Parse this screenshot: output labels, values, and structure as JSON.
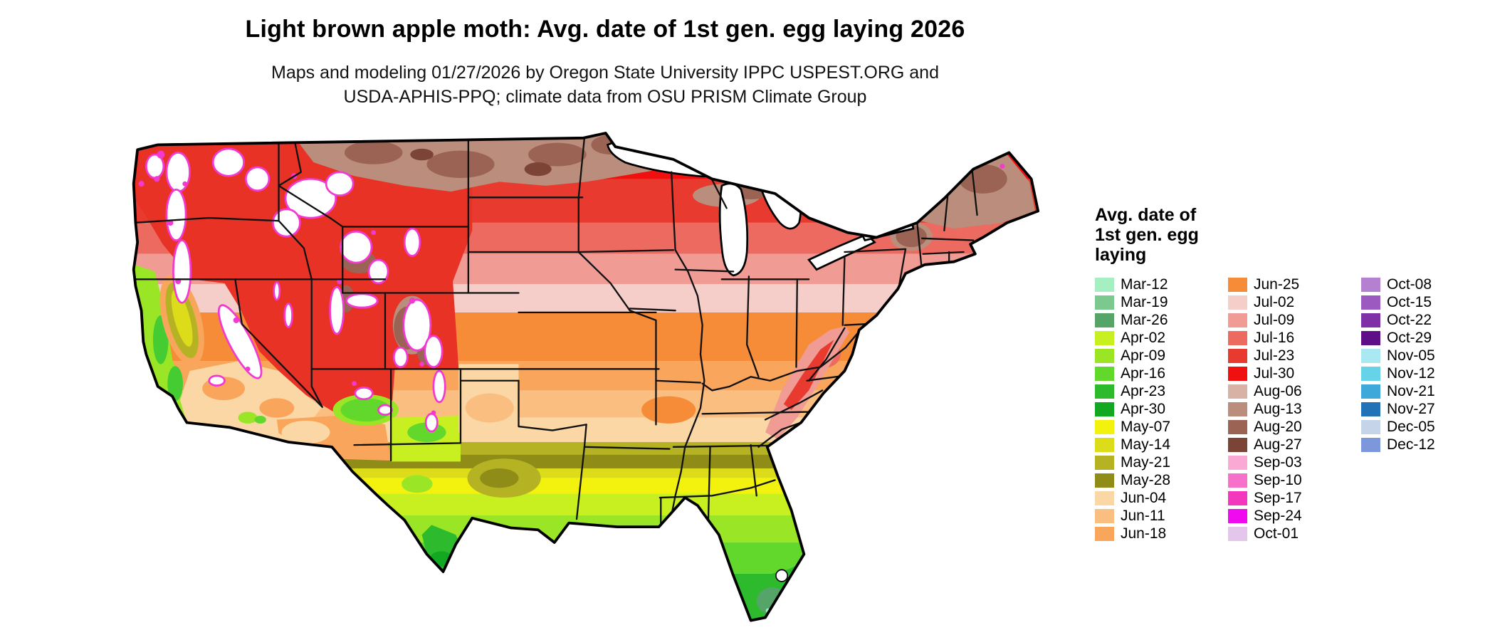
{
  "title": "Light brown apple moth: Avg. date of 1st gen. egg laying 2026",
  "subtitle": {
    "line1": "Maps and modeling 01/27/2026 by Oregon State University IPPC USPEST.ORG and",
    "line2": "USDA-APHIS-PPQ; climate data from OSU PRISM Climate Group"
  },
  "legend": {
    "title_lines": [
      "Avg. date of",
      "1st gen. egg",
      "laying"
    ],
    "columns": [
      [
        {
          "label": "Mar-12",
          "color": "#A5EFC3"
        },
        {
          "label": "Mar-19",
          "color": "#7CC98F"
        },
        {
          "label": "Mar-26",
          "color": "#55A468"
        },
        {
          "label": "Apr-02",
          "color": "#C8F021"
        },
        {
          "label": "Apr-09",
          "color": "#9AE626"
        },
        {
          "label": "Apr-16",
          "color": "#63D82C"
        },
        {
          "label": "Apr-23",
          "color": "#2DBA2D"
        },
        {
          "label": "Apr-30",
          "color": "#12A822"
        },
        {
          "label": "May-07",
          "color": "#F2F20E"
        },
        {
          "label": "May-14",
          "color": "#DCDC1A"
        },
        {
          "label": "May-21",
          "color": "#B5B324"
        },
        {
          "label": "May-28",
          "color": "#8F8C18"
        },
        {
          "label": "Jun-04",
          "color": "#FAD7A4"
        },
        {
          "label": "Jun-11",
          "color": "#FBBE81"
        },
        {
          "label": "Jun-18",
          "color": "#F9A55C"
        }
      ],
      [
        {
          "label": "Jun-25",
          "color": "#F68C38"
        },
        {
          "label": "Jul-02",
          "color": "#F5CDC9"
        },
        {
          "label": "Jul-09",
          "color": "#F09B93"
        },
        {
          "label": "Jul-16",
          "color": "#EC6A60"
        },
        {
          "label": "Jul-23",
          "color": "#E83A2E"
        },
        {
          "label": "Jul-30",
          "color": "#F01010"
        },
        {
          "label": "Aug-06",
          "color": "#D8B2A4"
        },
        {
          "label": "Aug-13",
          "color": "#BA8D7D"
        },
        {
          "label": "Aug-20",
          "color": "#9A6354"
        },
        {
          "label": "Aug-27",
          "color": "#7B4437"
        },
        {
          "label": "Sep-03",
          "color": "#F9A9D4"
        },
        {
          "label": "Sep-10",
          "color": "#F770C9"
        },
        {
          "label": "Sep-17",
          "color": "#F338BE"
        },
        {
          "label": "Sep-24",
          "color": "#EF0AEF"
        },
        {
          "label": "Oct-01",
          "color": "#E4C6EC"
        }
      ],
      [
        {
          "label": "Oct-08",
          "color": "#B57FD2"
        },
        {
          "label": "Oct-15",
          "color": "#9C59C0"
        },
        {
          "label": "Oct-22",
          "color": "#7F30A6"
        },
        {
          "label": "Oct-29",
          "color": "#5E0E87"
        },
        {
          "label": "Nov-05",
          "color": "#ABE9F2"
        },
        {
          "label": "Nov-12",
          "color": "#67D3E8"
        },
        {
          "label": "Nov-21",
          "color": "#3FA8DB"
        },
        {
          "label": "Nov-27",
          "color": "#2272B8"
        },
        {
          "label": "Dec-05",
          "color": "#C6D4EA"
        },
        {
          "label": "Dec-12",
          "color": "#7D97DC"
        }
      ]
    ]
  }
}
